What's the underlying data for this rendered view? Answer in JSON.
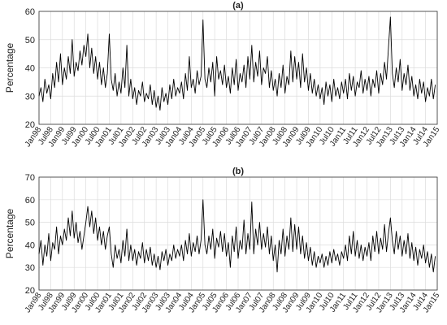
{
  "chart_data": [
    {
      "type": "line",
      "title": "(a)",
      "ylabel": "Percentage",
      "color": "#000000",
      "grid": true,
      "x": [
        "1998-01",
        "1998-02",
        "1998-03",
        "1998-04",
        "1998-05",
        "1998-06",
        "1998-07",
        "1998-08",
        "1998-09",
        "1998-10",
        "1998-11",
        "1998-12",
        "1999-01",
        "1999-02",
        "1999-03",
        "1999-04",
        "1999-05",
        "1999-06",
        "1999-07",
        "1999-08",
        "1999-09",
        "1999-10",
        "1999-11",
        "1999-12",
        "2000-01",
        "2000-02",
        "2000-03",
        "2000-04",
        "2000-05",
        "2000-06",
        "2000-07",
        "2000-08",
        "2000-09",
        "2000-10",
        "2000-11",
        "2000-12",
        "2001-01",
        "2001-02",
        "2001-03",
        "2001-04",
        "2001-05",
        "2001-06",
        "2001-07",
        "2001-08",
        "2001-09",
        "2001-10",
        "2001-11",
        "2001-12",
        "2002-01",
        "2002-02",
        "2002-03",
        "2002-04",
        "2002-05",
        "2002-06",
        "2002-07",
        "2002-08",
        "2002-09",
        "2002-10",
        "2002-11",
        "2002-12",
        "2003-01",
        "2003-02",
        "2003-03",
        "2003-04",
        "2003-05",
        "2003-06",
        "2003-07",
        "2003-08",
        "2003-09",
        "2003-10",
        "2003-11",
        "2003-12",
        "2004-01",
        "2004-02",
        "2004-03",
        "2004-04",
        "2004-05",
        "2004-06",
        "2004-07",
        "2004-08",
        "2004-09",
        "2004-10",
        "2004-11",
        "2004-12",
        "2005-01",
        "2005-02",
        "2005-03",
        "2005-04",
        "2005-05",
        "2005-06",
        "2005-07",
        "2005-08",
        "2005-09",
        "2005-10",
        "2005-11",
        "2005-12",
        "2006-01",
        "2006-02",
        "2006-03",
        "2006-04",
        "2006-05",
        "2006-06",
        "2006-07",
        "2006-08",
        "2006-09",
        "2006-10",
        "2006-11",
        "2006-12",
        "2007-01",
        "2007-02",
        "2007-03",
        "2007-04",
        "2007-05",
        "2007-06",
        "2007-07",
        "2007-08",
        "2007-09",
        "2007-10",
        "2007-11",
        "2007-12",
        "2008-01",
        "2008-02",
        "2008-03",
        "2008-04",
        "2008-05",
        "2008-06",
        "2008-07",
        "2008-08",
        "2008-09",
        "2008-10",
        "2008-11",
        "2008-12",
        "2009-01",
        "2009-02",
        "2009-03",
        "2009-04",
        "2009-05",
        "2009-06",
        "2009-07",
        "2009-08",
        "2009-09",
        "2009-10",
        "2009-11",
        "2009-12",
        "2010-01",
        "2010-02",
        "2010-03",
        "2010-04",
        "2010-05",
        "2010-06",
        "2010-07",
        "2010-08",
        "2010-09",
        "2010-10",
        "2010-11",
        "2010-12",
        "2011-01",
        "2011-02",
        "2011-03",
        "2011-04",
        "2011-05",
        "2011-06",
        "2011-07",
        "2011-08",
        "2011-09",
        "2011-10",
        "2011-11",
        "2011-12",
        "2012-01",
        "2012-02",
        "2012-03",
        "2012-04",
        "2012-05",
        "2012-06",
        "2012-07",
        "2012-08",
        "2012-09",
        "2012-10",
        "2012-11",
        "2012-12",
        "2013-01",
        "2013-02",
        "2013-03",
        "2013-04",
        "2013-05",
        "2013-06",
        "2013-07",
        "2013-08",
        "2013-09",
        "2013-10",
        "2013-11",
        "2013-12",
        "2014-01",
        "2014-02",
        "2014-03",
        "2014-04",
        "2014-05",
        "2014-06",
        "2014-07",
        "2014-08",
        "2014-09",
        "2014-10",
        "2014-11",
        "2014-12"
      ],
      "values": [
        30,
        33,
        28,
        36,
        31,
        34,
        29,
        38,
        33,
        42,
        35,
        45,
        34,
        40,
        36,
        44,
        38,
        50,
        37,
        42,
        39,
        46,
        41,
        48,
        44,
        52,
        40,
        47,
        38,
        44,
        36,
        42,
        34,
        40,
        33,
        38,
        52,
        36,
        32,
        38,
        30,
        35,
        31,
        40,
        33,
        48,
        30,
        36,
        29,
        33,
        27,
        32,
        30,
        35,
        28,
        31,
        29,
        34,
        27,
        32,
        26,
        30,
        25,
        33,
        28,
        31,
        27,
        34,
        29,
        36,
        30,
        33,
        31,
        35,
        29,
        38,
        32,
        44,
        33,
        36,
        31,
        39,
        34,
        37,
        57,
        36,
        33,
        40,
        35,
        42,
        30,
        44,
        36,
        39,
        34,
        41,
        33,
        37,
        31,
        40,
        34,
        43,
        32,
        38,
        35,
        41,
        33,
        44,
        36,
        48,
        35,
        42,
        37,
        46,
        34,
        40,
        38,
        44,
        33,
        39,
        32,
        36,
        30,
        38,
        33,
        41,
        31,
        37,
        34,
        46,
        35,
        44,
        36,
        42,
        33,
        45,
        35,
        40,
        32,
        38,
        31,
        36,
        30,
        34,
        29,
        33,
        27,
        35,
        30,
        34,
        28,
        36,
        30,
        33,
        29,
        35,
        31,
        36,
        29,
        38,
        32,
        37,
        30,
        35,
        33,
        39,
        31,
        36,
        32,
        37,
        30,
        36,
        33,
        39,
        31,
        38,
        34,
        42,
        36,
        47,
        58,
        38,
        33,
        40,
        35,
        43,
        32,
        38,
        34,
        41,
        32,
        37,
        30,
        34,
        29,
        36,
        31,
        35,
        28,
        33,
        30,
        36,
        29,
        34
      ],
      "xlim": [
        "1998-01",
        "2015-01"
      ],
      "xticks": [
        {
          "value": "1998-01",
          "label": "Jan98"
        },
        {
          "value": "1998-07",
          "label": "Jul98"
        },
        {
          "value": "1999-01",
          "label": "Jan99"
        },
        {
          "value": "1999-07",
          "label": "Jul99"
        },
        {
          "value": "2000-01",
          "label": "Jan00"
        },
        {
          "value": "2000-07",
          "label": "Jul00"
        },
        {
          "value": "2001-01",
          "label": "Jan01"
        },
        {
          "value": "2001-07",
          "label": "Jul01"
        },
        {
          "value": "2002-01",
          "label": "Jan02"
        },
        {
          "value": "2002-07",
          "label": "Jul02"
        },
        {
          "value": "2003-01",
          "label": "Jan03"
        },
        {
          "value": "2003-07",
          "label": "Jul03"
        },
        {
          "value": "2004-01",
          "label": "Jan04"
        },
        {
          "value": "2004-07",
          "label": "Jul04"
        },
        {
          "value": "2005-01",
          "label": "Jan05"
        },
        {
          "value": "2005-07",
          "label": "Jul05"
        },
        {
          "value": "2006-01",
          "label": "Jan06"
        },
        {
          "value": "2006-07",
          "label": "Jul06"
        },
        {
          "value": "2007-01",
          "label": "Jan07"
        },
        {
          "value": "2007-07",
          "label": "Jul07"
        },
        {
          "value": "2008-01",
          "label": "Jan08"
        },
        {
          "value": "2008-07",
          "label": "Jul08"
        },
        {
          "value": "2009-01",
          "label": "Jan09"
        },
        {
          "value": "2009-07",
          "label": "Jul09"
        },
        {
          "value": "2010-01",
          "label": "Jan10"
        },
        {
          "value": "2010-07",
          "label": "Jul10"
        },
        {
          "value": "2011-01",
          "label": "Jan11"
        },
        {
          "value": "2011-07",
          "label": "Jul11"
        },
        {
          "value": "2012-01",
          "label": "Jan12"
        },
        {
          "value": "2012-07",
          "label": "Jul12"
        },
        {
          "value": "2013-01",
          "label": "Jan13"
        },
        {
          "value": "2013-07",
          "label": "Jul13"
        },
        {
          "value": "2014-01",
          "label": "Jan14"
        },
        {
          "value": "2014-07",
          "label": "Jul14"
        },
        {
          "value": "2015-01",
          "label": "Jan15"
        }
      ],
      "ylim": [
        20,
        60
      ],
      "yticks": [
        20,
        30,
        40,
        50,
        60
      ]
    },
    {
      "type": "line",
      "title": "(b)",
      "ylabel": "Percentage",
      "color": "#000000",
      "grid": true,
      "x": [
        "1998-01",
        "1998-02",
        "1998-03",
        "1998-04",
        "1998-05",
        "1998-06",
        "1998-07",
        "1998-08",
        "1998-09",
        "1998-10",
        "1998-11",
        "1998-12",
        "1999-01",
        "1999-02",
        "1999-03",
        "1999-04",
        "1999-05",
        "1999-06",
        "1999-07",
        "1999-08",
        "1999-09",
        "1999-10",
        "1999-11",
        "1999-12",
        "2000-01",
        "2000-02",
        "2000-03",
        "2000-04",
        "2000-05",
        "2000-06",
        "2000-07",
        "2000-08",
        "2000-09",
        "2000-10",
        "2000-11",
        "2000-12",
        "2001-01",
        "2001-02",
        "2001-03",
        "2001-04",
        "2001-05",
        "2001-06",
        "2001-07",
        "2001-08",
        "2001-09",
        "2001-10",
        "2001-11",
        "2001-12",
        "2002-01",
        "2002-02",
        "2002-03",
        "2002-04",
        "2002-05",
        "2002-06",
        "2002-07",
        "2002-08",
        "2002-09",
        "2002-10",
        "2002-11",
        "2002-12",
        "2003-01",
        "2003-02",
        "2003-03",
        "2003-04",
        "2003-05",
        "2003-06",
        "2003-07",
        "2003-08",
        "2003-09",
        "2003-10",
        "2003-11",
        "2003-12",
        "2004-01",
        "2004-02",
        "2004-03",
        "2004-04",
        "2004-05",
        "2004-06",
        "2004-07",
        "2004-08",
        "2004-09",
        "2004-10",
        "2004-11",
        "2004-12",
        "2005-01",
        "2005-02",
        "2005-03",
        "2005-04",
        "2005-05",
        "2005-06",
        "2005-07",
        "2005-08",
        "2005-09",
        "2005-10",
        "2005-11",
        "2005-12",
        "2006-01",
        "2006-02",
        "2006-03",
        "2006-04",
        "2006-05",
        "2006-06",
        "2006-07",
        "2006-08",
        "2006-09",
        "2006-10",
        "2006-11",
        "2006-12",
        "2007-01",
        "2007-02",
        "2007-03",
        "2007-04",
        "2007-05",
        "2007-06",
        "2007-07",
        "2007-08",
        "2007-09",
        "2007-10",
        "2007-11",
        "2007-12",
        "2008-01",
        "2008-02",
        "2008-03",
        "2008-04",
        "2008-05",
        "2008-06",
        "2008-07",
        "2008-08",
        "2008-09",
        "2008-10",
        "2008-11",
        "2008-12",
        "2009-01",
        "2009-02",
        "2009-03",
        "2009-04",
        "2009-05",
        "2009-06",
        "2009-07",
        "2009-08",
        "2009-09",
        "2009-10",
        "2009-11",
        "2009-12",
        "2010-01",
        "2010-02",
        "2010-03",
        "2010-04",
        "2010-05",
        "2010-06",
        "2010-07",
        "2010-08",
        "2010-09",
        "2010-10",
        "2010-11",
        "2010-12",
        "2011-01",
        "2011-02",
        "2011-03",
        "2011-04",
        "2011-05",
        "2011-06",
        "2011-07",
        "2011-08",
        "2011-09",
        "2011-10",
        "2011-11",
        "2011-12",
        "2012-01",
        "2012-02",
        "2012-03",
        "2012-04",
        "2012-05",
        "2012-06",
        "2012-07",
        "2012-08",
        "2012-09",
        "2012-10",
        "2012-11",
        "2012-12",
        "2013-01",
        "2013-02",
        "2013-03",
        "2013-04",
        "2013-05",
        "2013-06",
        "2013-07",
        "2013-08",
        "2013-09",
        "2013-10",
        "2013-11",
        "2013-12",
        "2014-01",
        "2014-02",
        "2014-03",
        "2014-04",
        "2014-05",
        "2014-06",
        "2014-07",
        "2014-08",
        "2014-09",
        "2014-10",
        "2014-11",
        "2014-12"
      ],
      "values": [
        36,
        42,
        31,
        40,
        35,
        45,
        33,
        41,
        38,
        48,
        36,
        44,
        40,
        47,
        42,
        52,
        44,
        55,
        43,
        50,
        41,
        46,
        38,
        44,
        50,
        57,
        48,
        55,
        45,
        52,
        42,
        48,
        40,
        46,
        38,
        44,
        48,
        36,
        30,
        40,
        34,
        38,
        32,
        42,
        35,
        47,
        33,
        40,
        33,
        38,
        31,
        37,
        34,
        41,
        32,
        38,
        33,
        39,
        31,
        36,
        30,
        35,
        29,
        37,
        33,
        38,
        31,
        36,
        33,
        40,
        34,
        38,
        35,
        40,
        33,
        42,
        36,
        45,
        35,
        41,
        37,
        44,
        36,
        42,
        60,
        40,
        36,
        44,
        38,
        47,
        34,
        43,
        39,
        46,
        37,
        45,
        35,
        41,
        30,
        44,
        37,
        48,
        34,
        42,
        38,
        51,
        36,
        45,
        38,
        59,
        36,
        47,
        40,
        50,
        38,
        45,
        39,
        48,
        36,
        44,
        33,
        40,
        28,
        42,
        36,
        47,
        35,
        44,
        38,
        52,
        37,
        49,
        38,
        48,
        36,
        44,
        34,
        41,
        33,
        39,
        31,
        37,
        30,
        35,
        32,
        36,
        30,
        35,
        31,
        37,
        32,
        38,
        33,
        36,
        31,
        37,
        34,
        40,
        33,
        44,
        36,
        46,
        35,
        42,
        34,
        40,
        33,
        39,
        35,
        41,
        33,
        44,
        37,
        46,
        36,
        43,
        38,
        49,
        37,
        45,
        52,
        42,
        36,
        46,
        38,
        44,
        35,
        42,
        36,
        45,
        34,
        41,
        33,
        39,
        31,
        38,
        34,
        40,
        32,
        37,
        30,
        36,
        28,
        35
      ],
      "xlim": [
        "1998-01",
        "2015-01"
      ],
      "xticks": [
        {
          "value": "1998-01",
          "label": "Jan98"
        },
        {
          "value": "1998-07",
          "label": "Jul98"
        },
        {
          "value": "1999-01",
          "label": "Jan99"
        },
        {
          "value": "1999-07",
          "label": "Jul99"
        },
        {
          "value": "2000-01",
          "label": "Jan00"
        },
        {
          "value": "2000-07",
          "label": "Jul00"
        },
        {
          "value": "2001-01",
          "label": "Jan01"
        },
        {
          "value": "2001-07",
          "label": "Jul01"
        },
        {
          "value": "2002-01",
          "label": "Jan02"
        },
        {
          "value": "2002-07",
          "label": "Jul02"
        },
        {
          "value": "2003-01",
          "label": "Jan03"
        },
        {
          "value": "2003-07",
          "label": "Jul03"
        },
        {
          "value": "2004-01",
          "label": "Jan04"
        },
        {
          "value": "2004-07",
          "label": "Jul04"
        },
        {
          "value": "2005-01",
          "label": "Jan05"
        },
        {
          "value": "2005-07",
          "label": "Jul05"
        },
        {
          "value": "2006-01",
          "label": "Jan06"
        },
        {
          "value": "2006-07",
          "label": "Jul06"
        },
        {
          "value": "2007-01",
          "label": "Jan07"
        },
        {
          "value": "2007-07",
          "label": "Jul07"
        },
        {
          "value": "2008-01",
          "label": "Jan08"
        },
        {
          "value": "2008-07",
          "label": "Jul08"
        },
        {
          "value": "2009-01",
          "label": "Jan09"
        },
        {
          "value": "2009-07",
          "label": "Jul09"
        },
        {
          "value": "2010-01",
          "label": "Jan10"
        },
        {
          "value": "2010-07",
          "label": "Jul10"
        },
        {
          "value": "2011-01",
          "label": "Jan11"
        },
        {
          "value": "2011-07",
          "label": "Jul11"
        },
        {
          "value": "2012-01",
          "label": "Jan12"
        },
        {
          "value": "2012-07",
          "label": "Jul12"
        },
        {
          "value": "2013-01",
          "label": "Jan13"
        },
        {
          "value": "2013-07",
          "label": "Jul13"
        },
        {
          "value": "2014-01",
          "label": "Jan14"
        },
        {
          "value": "2014-07",
          "label": "Jul14"
        },
        {
          "value": "2015-01",
          "label": "Jan15"
        }
      ],
      "ylim": [
        20,
        70
      ],
      "yticks": [
        20,
        30,
        40,
        50,
        60,
        70
      ]
    }
  ]
}
